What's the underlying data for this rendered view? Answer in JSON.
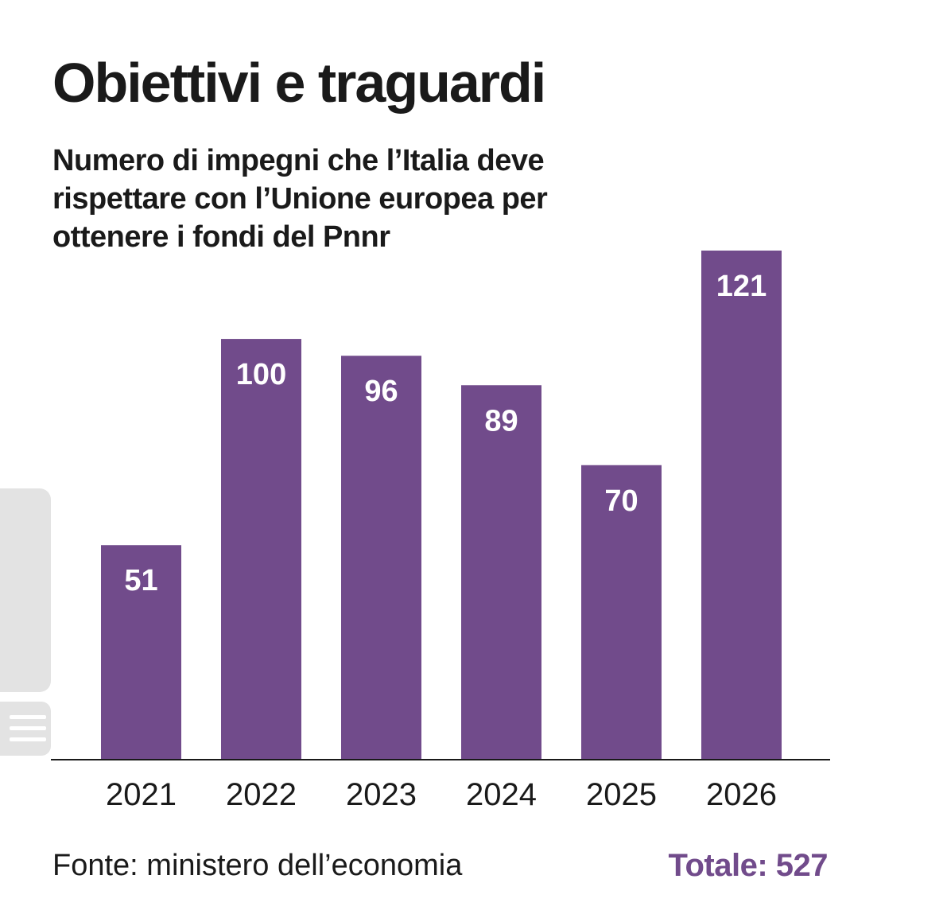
{
  "header": {
    "title": "Obiettivi e traguardi",
    "subtitle": "Numero di impegni che l’Italia deve rispettare con l’Unione europea per ottenere i fondi del Pnnr"
  },
  "footer": {
    "source": "Fonte: ministero dell’economia",
    "total": "Totale: 527"
  },
  "colors": {
    "bar": "#714b8b",
    "accent": "#714b8b",
    "axis": "#1a1a1a",
    "value_text": "#ffffff",
    "side_panel": "#e3e3e3"
  },
  "sidebar": {
    "panel_icon": "side-panel-tab",
    "handle_icon": "drag-handle-icon"
  },
  "chart_data": {
    "type": "bar",
    "title": "Obiettivi e traguardi",
    "subtitle": "Numero di impegni che l’Italia deve rispettare con l’Unione europea per ottenere i fondi del Pnnr",
    "categories": [
      "2021",
      "2022",
      "2023",
      "2024",
      "2025",
      "2026"
    ],
    "values": [
      51,
      100,
      96,
      89,
      70,
      121
    ],
    "xlabel": "",
    "ylabel": "",
    "ylim": [
      0,
      121
    ],
    "grid": false,
    "legend": "none",
    "data_labels": "inside-top"
  }
}
